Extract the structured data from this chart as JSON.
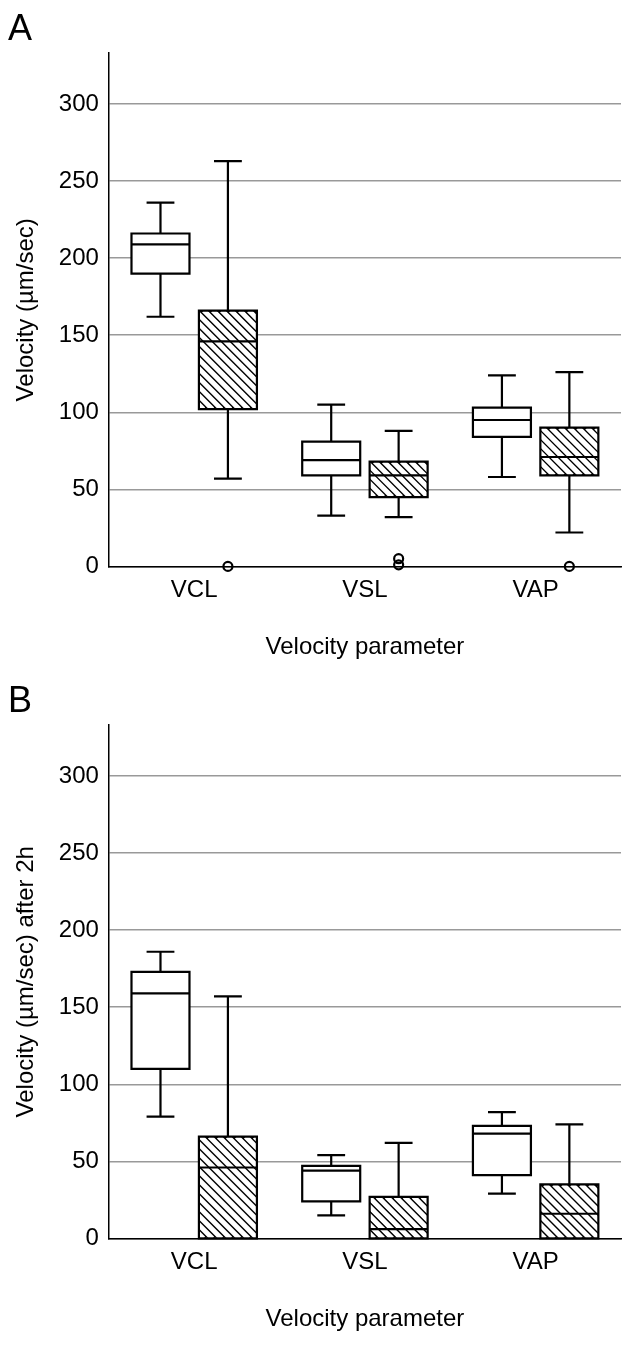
{
  "chart_data": [
    {
      "type": "box",
      "title": "A",
      "xlabel": "Velocity parameter",
      "ylabel": "Velocity (µm/sec)",
      "categories": [
        "VCL",
        "VSL",
        "VAP"
      ],
      "ylim": [
        0,
        333
      ],
      "yticks": [
        0,
        50,
        100,
        150,
        200,
        250,
        300
      ],
      "grid": "y",
      "series": [
        {
          "color": "#ffffff",
          "boxes": [
            {
              "low": 162,
              "q1": 190,
              "median": 209,
              "q3": 216,
              "high": 236
            },
            {
              "low": 33,
              "q1": 59,
              "median": 69,
              "q3": 81,
              "high": 105
            },
            {
              "low": 58,
              "q1": 84,
              "median": 95,
              "q3": 103,
              "high": 124
            }
          ]
        },
        {
          "color": "#000000",
          "boxes": [
            {
              "low": 57,
              "q1": 102,
              "median": 146,
              "q3": 166,
              "high": 263,
              "outliers": [
                0
              ]
            },
            {
              "low": 32,
              "q1": 45,
              "median": 59,
              "q3": 68,
              "high": 88,
              "outliers": [
                5,
                1
              ]
            },
            {
              "low": 22,
              "q1": 59,
              "median": 71,
              "q3": 90,
              "high": 126,
              "outliers": [
                0
              ]
            }
          ]
        }
      ]
    },
    {
      "type": "box",
      "title": "B",
      "xlabel": "Velocity parameter",
      "ylabel": "Velocity (µm/sec) after 2h",
      "categories": [
        "VCL",
        "VSL",
        "VAP"
      ],
      "ylim": [
        0,
        333
      ],
      "yticks": [
        0,
        50,
        100,
        150,
        200,
        250,
        300
      ],
      "grid": "y",
      "series": [
        {
          "color": "#ffffff",
          "boxes": [
            {
              "low": 79,
              "q1": 110,
              "median": 159,
              "q3": 173,
              "high": 186
            },
            {
              "low": 15,
              "q1": 24,
              "median": 44,
              "q3": 47,
              "high": 54
            },
            {
              "low": 29,
              "q1": 41,
              "median": 68,
              "q3": 73,
              "high": 82
            }
          ]
        },
        {
          "color": "#000000",
          "boxes": [
            {
              "low": 0,
              "q1": 0,
              "median": 46,
              "q3": 66,
              "high": 157
            },
            {
              "low": 0,
              "q1": 0,
              "median": 6,
              "q3": 27,
              "high": 62
            },
            {
              "low": 0,
              "q1": 0,
              "median": 16,
              "q3": 35,
              "high": 74
            }
          ]
        }
      ]
    }
  ]
}
